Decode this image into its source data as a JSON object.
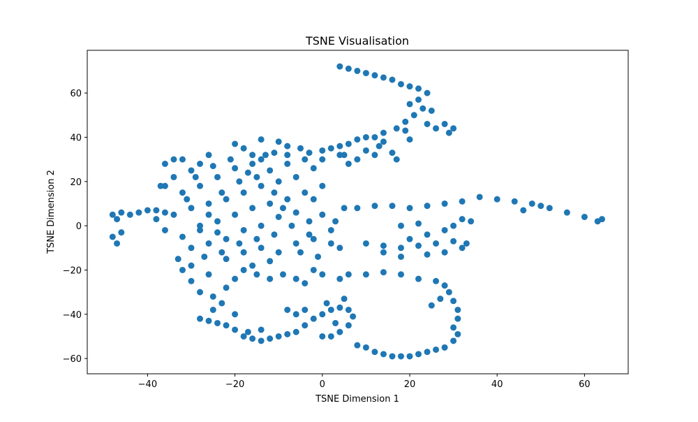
{
  "chart_data": {
    "type": "scatter",
    "title": "TSNE Visualisation",
    "x_label": "TSNE Dimension 1",
    "y_label": "TSNE Dimension 2",
    "color": "#1f77b4",
    "xlim": [
      -53.8,
      70
    ],
    "ylim": [
      -66.9,
      79.3
    ],
    "xticks": [
      {
        "value": -40,
        "label": "−40"
      },
      {
        "value": -20,
        "label": "−20"
      },
      0,
      20,
      40,
      60
    ],
    "yticks": [
      {
        "value": -60,
        "label": "−60"
      },
      {
        "value": -40,
        "label": "−40"
      },
      {
        "value": -20,
        "label": "−20"
      },
      0,
      20,
      40,
      60
    ],
    "x": [
      4,
      6,
      8,
      10,
      12,
      14,
      16,
      18,
      20,
      22,
      24,
      22,
      20,
      23,
      25,
      21,
      19,
      24,
      28,
      30,
      29,
      26,
      17,
      14,
      12,
      10,
      8,
      6,
      4,
      2,
      0,
      -3,
      -5,
      -8,
      -11,
      -14,
      -16,
      -18,
      -20,
      -14,
      -10,
      -8,
      13,
      16,
      17,
      12,
      8,
      5,
      10,
      20,
      19,
      14,
      -48,
      -48,
      -47,
      -46,
      -44,
      -42,
      -40,
      -38,
      -36,
      -46,
      -47,
      8,
      12,
      16,
      20,
      24,
      28,
      32,
      36,
      40,
      44,
      48,
      52,
      56,
      60,
      63,
      64,
      50,
      46,
      10,
      14,
      18,
      22,
      26,
      30,
      33,
      32,
      28,
      24,
      18,
      14,
      20,
      24,
      28,
      30,
      32,
      34,
      18,
      22,
      6,
      10,
      14,
      18,
      22,
      26,
      28,
      29,
      30,
      31,
      31,
      30,
      31,
      30,
      28,
      26,
      24,
      22,
      20,
      18,
      16,
      14,
      12,
      10,
      8,
      27,
      25,
      -28,
      -26,
      -24,
      -22,
      -20,
      -18,
      -16,
      -14,
      -12,
      -10,
      -8,
      -6,
      -4,
      -2,
      0,
      2,
      4,
      6,
      7,
      6,
      4,
      2,
      0,
      -6,
      -8,
      -4,
      -14,
      -17,
      3,
      5,
      1,
      -30,
      -28,
      -25,
      -22,
      -20,
      -18,
      -15,
      -12,
      -9,
      -6,
      -4,
      -2,
      0,
      4,
      -25,
      -23,
      -33,
      -30,
      -26,
      -22,
      -18,
      -14,
      -10,
      -6,
      -2,
      2,
      4,
      -32,
      -20,
      -32,
      -30,
      -28,
      -26,
      -34,
      -36,
      -32,
      -28,
      -24,
      -20,
      -16,
      -12,
      -8,
      -4,
      -2,
      -6,
      -10,
      -14,
      -18,
      -22,
      -26,
      -30,
      -34,
      -38,
      -36,
      -32,
      -28,
      -24,
      -20,
      -16,
      -12,
      -8,
      -4,
      0,
      -2,
      -6,
      -10,
      -14,
      -18,
      -22,
      -26,
      -30,
      -28,
      -26,
      -23,
      -19,
      -15,
      -11,
      -7,
      -3,
      0,
      3,
      5,
      2,
      -3,
      -11,
      -15,
      -19,
      -23,
      -27,
      -31,
      -29,
      -25,
      -21,
      -17,
      -13,
      -9,
      -5,
      -1,
      -24,
      -12,
      -16,
      4,
      6,
      0,
      -36,
      -34,
      -37
    ],
    "values": [
      72,
      71,
      70,
      69,
      68,
      67,
      66,
      64,
      63,
      62,
      60,
      57,
      55,
      53,
      52,
      50,
      47,
      46,
      46,
      44,
      42,
      44,
      44,
      42,
      40,
      40,
      39,
      37,
      36,
      35,
      34,
      33,
      35,
      32,
      33,
      30,
      32,
      35,
      37,
      39,
      38,
      36,
      36,
      33,
      30,
      32,
      30,
      32,
      34,
      39,
      43,
      38,
      5,
      -5,
      -8,
      6,
      5,
      6,
      7,
      7,
      6,
      -3,
      3,
      8,
      9,
      9,
      8,
      9,
      10,
      11,
      13,
      12,
      11,
      10,
      8,
      6,
      4,
      2,
      3,
      9,
      7,
      -8,
      -9,
      -10,
      -9,
      -8,
      -7,
      -8,
      -10,
      -12,
      -13,
      -14,
      -12,
      -6,
      -4,
      -2,
      0,
      3,
      2,
      0,
      1,
      -22,
      -22,
      -21,
      -22,
      -24,
      -25,
      -27,
      -30,
      -34,
      -38,
      -42,
      -46,
      -49,
      -52,
      -55,
      -56,
      -57,
      -58,
      -59,
      -59,
      -59,
      -58,
      -57,
      -55,
      -54,
      -33,
      -36,
      -42,
      -43,
      -44,
      -45,
      -47,
      -50,
      -51,
      -52,
      -51,
      -50,
      -49,
      -48,
      -45,
      -42,
      -40,
      -38,
      -37,
      -38,
      -41,
      -45,
      -48,
      -50,
      -50,
      -40,
      -38,
      -38,
      -47,
      -48,
      -44,
      -33,
      -35,
      -25,
      -30,
      -32,
      -28,
      -24,
      -20,
      -22,
      -24,
      -22,
      -24,
      -26,
      -20,
      -22,
      -24,
      -38,
      -35,
      -15,
      -18,
      -22,
      -15,
      -12,
      -10,
      -12,
      -8,
      -6,
      -8,
      -10,
      -20,
      -40,
      30,
      25,
      28,
      32,
      22,
      18,
      15,
      18,
      22,
      26,
      28,
      25,
      28,
      30,
      26,
      22,
      20,
      18,
      15,
      12,
      10,
      8,
      5,
      3,
      -2,
      -5,
      -2,
      2,
      5,
      8,
      10,
      12,
      15,
      18,
      12,
      6,
      4,
      0,
      -2,
      -6,
      -8,
      -10,
      0,
      5,
      15,
      20,
      22,
      15,
      0,
      2,
      5,
      2,
      8,
      -2,
      -4,
      -4,
      -6,
      -8,
      -12,
      -14,
      12,
      22,
      27,
      30,
      24,
      32,
      8,
      -12,
      -14,
      -3,
      -16,
      -18,
      32,
      28,
      30,
      28,
      30,
      18
    ]
  }
}
